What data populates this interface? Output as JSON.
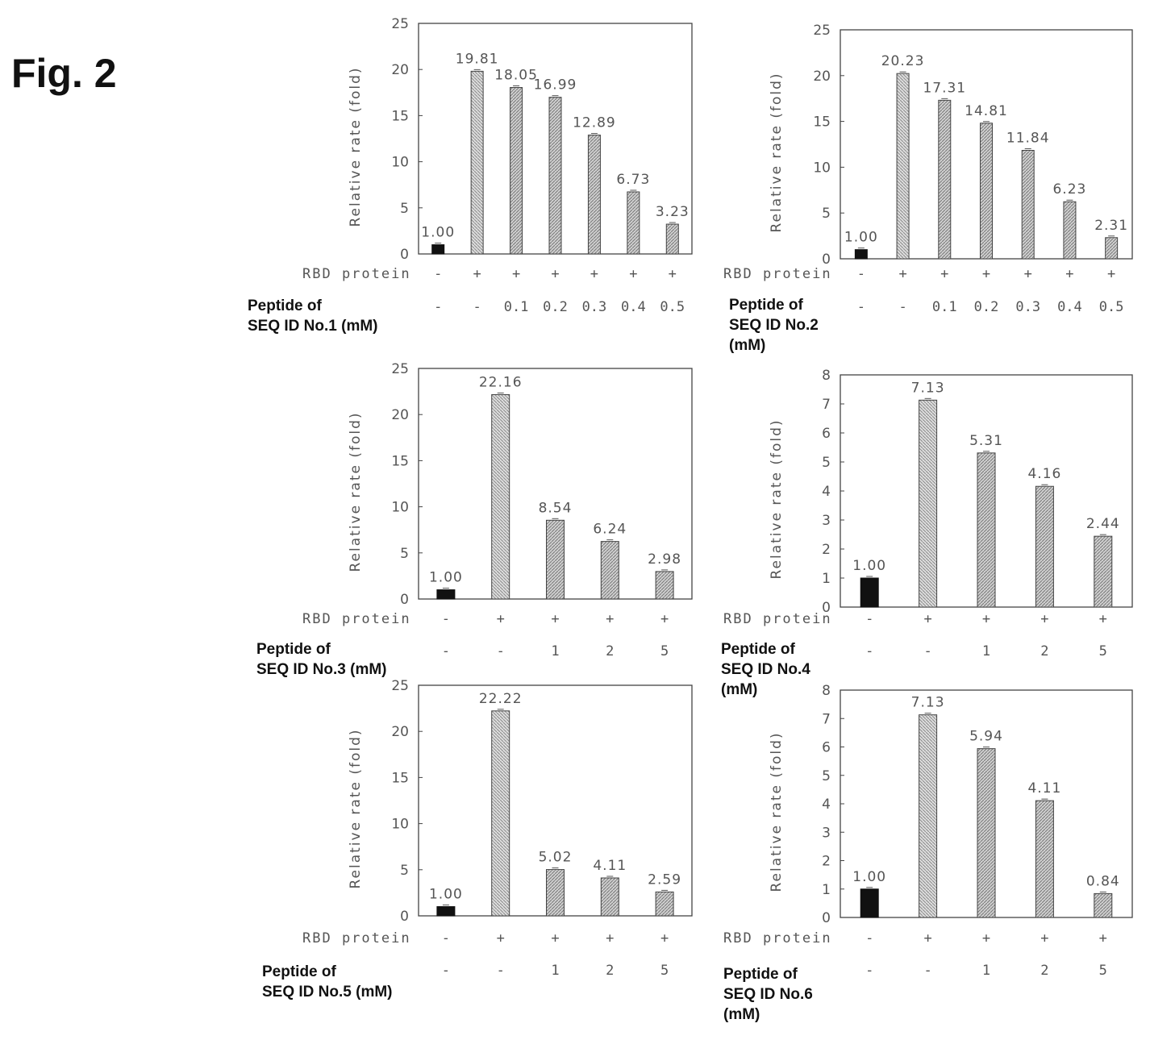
{
  "figure_title": "Fig. 2",
  "row_labels": {
    "rbd": "RBD protein"
  },
  "colors": {
    "control_bar": "#111111",
    "bar_fill": "#b9b9b9",
    "bar_stroke": "#444444",
    "frame": "#444444"
  },
  "chart_data": [
    {
      "type": "bar",
      "ylabel": "Relative rate (fold)",
      "ylim": [
        0,
        25
      ],
      "yticks": [
        "0",
        "5",
        "10",
        "15",
        "20",
        "25"
      ],
      "values": [
        1.0,
        19.81,
        18.05,
        16.99,
        12.89,
        6.73,
        3.23
      ],
      "value_labels": [
        "1.00",
        "19.81",
        "18.05",
        "16.99",
        "12.89",
        "6.73",
        "3.23"
      ],
      "rbd": [
        "-",
        "+",
        "+",
        "+",
        "+",
        "+",
        "+"
      ],
      "peptide": [
        "-",
        "-",
        "0.1",
        "0.2",
        "0.3",
        "0.4",
        "0.5"
      ],
      "peptide_label": [
        "Peptide of",
        "SEQ ID No.1 (mM)"
      ]
    },
    {
      "type": "bar",
      "ylabel": "Relative rate (fold)",
      "ylim": [
        0,
        25
      ],
      "yticks": [
        "0",
        "5",
        "10",
        "15",
        "20",
        "25"
      ],
      "values": [
        1.0,
        20.23,
        17.31,
        14.81,
        11.84,
        6.23,
        2.31
      ],
      "value_labels": [
        "1.00",
        "20.23",
        "17.31",
        "14.81",
        "11.84",
        "6.23",
        "2.31"
      ],
      "rbd": [
        "-",
        "+",
        "+",
        "+",
        "+",
        "+",
        "+"
      ],
      "peptide": [
        "-",
        "-",
        "0.1",
        "0.2",
        "0.3",
        "0.4",
        "0.5"
      ],
      "peptide_label": [
        "Peptide of",
        "SEQ ID No.2",
        "(mM)"
      ]
    },
    {
      "type": "bar",
      "ylabel": "Relative rate (fold)",
      "ylim": [
        0,
        25
      ],
      "yticks": [
        "0",
        "5",
        "10",
        "15",
        "20",
        "25"
      ],
      "values": [
        1.0,
        22.16,
        8.54,
        6.24,
        2.98
      ],
      "value_labels": [
        "1.00",
        "22.16",
        "8.54",
        "6.24",
        "2.98"
      ],
      "rbd": [
        "-",
        "+",
        "+",
        "+",
        "+"
      ],
      "peptide": [
        "-",
        "-",
        "1",
        "2",
        "5"
      ],
      "peptide_label": [
        "Peptide of",
        "SEQ ID No.3 (mM)"
      ]
    },
    {
      "type": "bar",
      "ylabel": "Relative rate (fold)",
      "ylim": [
        0,
        8
      ],
      "yticks": [
        "0",
        "1",
        "2",
        "3",
        "4",
        "5",
        "6",
        "7",
        "8"
      ],
      "values": [
        1.0,
        7.13,
        5.31,
        4.16,
        2.44
      ],
      "value_labels": [
        "1.00",
        "7.13",
        "5.31",
        "4.16",
        "2.44"
      ],
      "rbd": [
        "-",
        "+",
        "+",
        "+",
        "+"
      ],
      "peptide": [
        "-",
        "-",
        "1",
        "2",
        "5"
      ],
      "peptide_label": [
        "Peptide of",
        "SEQ ID No.4",
        "(mM)"
      ]
    },
    {
      "type": "bar",
      "ylabel": "Relative rate (fold)",
      "ylim": [
        0,
        25
      ],
      "yticks": [
        "0",
        "5",
        "10",
        "15",
        "20",
        "25"
      ],
      "values": [
        1.0,
        22.22,
        5.02,
        4.11,
        2.59
      ],
      "value_labels": [
        "1.00",
        "22.22",
        "5.02",
        "4.11",
        "2.59"
      ],
      "rbd": [
        "-",
        "+",
        "+",
        "+",
        "+"
      ],
      "peptide": [
        "-",
        "-",
        "1",
        "2",
        "5"
      ],
      "peptide_label": [
        "Peptide of",
        "SEQ ID No.5 (mM)"
      ]
    },
    {
      "type": "bar",
      "ylabel": "Relative rate (fold)",
      "ylim": [
        0,
        8
      ],
      "yticks": [
        "0",
        "1",
        "2",
        "3",
        "4",
        "5",
        "6",
        "7",
        "8"
      ],
      "values": [
        1.0,
        7.13,
        5.94,
        4.11,
        0.84
      ],
      "value_labels": [
        "1.00",
        "7.13",
        "5.94",
        "4.11",
        "0.84"
      ],
      "rbd": [
        "-",
        "+",
        "+",
        "+",
        "+"
      ],
      "peptide": [
        "-",
        "-",
        "1",
        "2",
        "5"
      ],
      "peptide_label": [
        "Peptide of",
        "SEQ ID No.6",
        "(mM)"
      ]
    }
  ]
}
